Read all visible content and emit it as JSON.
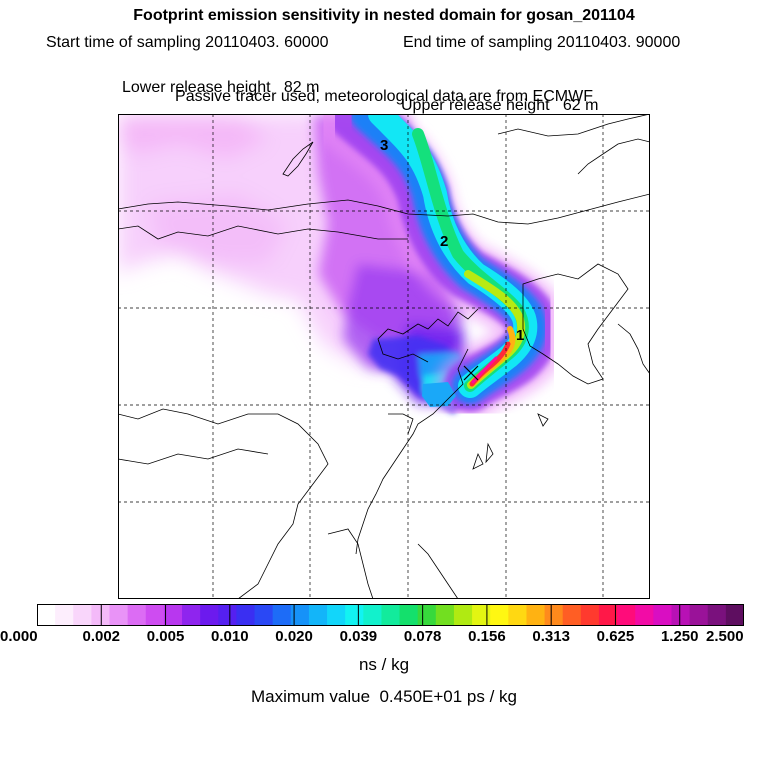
{
  "header": {
    "title": "Footprint emission sensitivity in nested domain for gosan_201104",
    "start_label": "Start time of sampling 20110403. 60000",
    "end_label": "End time of sampling 20110403. 90000",
    "lower_label": "Lower release height   82 m",
    "upper_label": "Upper release height   62 m",
    "tracer_note": "Passive tracer used, meteorological data are from ECMWF"
  },
  "map": {
    "markers": [
      {
        "label": "1"
      },
      {
        "label": "2"
      },
      {
        "label": "3"
      }
    ]
  },
  "legend": {
    "tick_labels": [
      "0.000",
      "0.002",
      "0.005",
      "0.010",
      "0.020",
      "0.039",
      "0.078",
      "0.156",
      "0.313",
      "0.625",
      "1.250",
      "2.500"
    ],
    "colors": [
      "#ffffff",
      "#fdeefd",
      "#f9d6fb",
      "#f4baf9",
      "#e993f7",
      "#dc6cf4",
      "#ce4cf1",
      "#b837ef",
      "#8f25ee",
      "#6c1aee",
      "#5520f0",
      "#3a2ff2",
      "#2a48f5",
      "#1d6cf7",
      "#1692f8",
      "#13b5f9",
      "#12d6fa",
      "#12f3f2",
      "#12f1cc",
      "#12eb9c",
      "#14e06c",
      "#37d93c",
      "#72df20",
      "#b0ea12",
      "#e3f512",
      "#fff712",
      "#ffd812",
      "#ffb212",
      "#ff8a1c",
      "#ff5e24",
      "#ff3a2e",
      "#ff1848",
      "#ff0c7a",
      "#f20ca6",
      "#d90ec2",
      "#b811b5",
      "#9a1299",
      "#7a117d",
      "#5e0e60"
    ],
    "units": "ns / kg",
    "max_value": "Maximum value  0.450E+01 ps / kg"
  }
}
